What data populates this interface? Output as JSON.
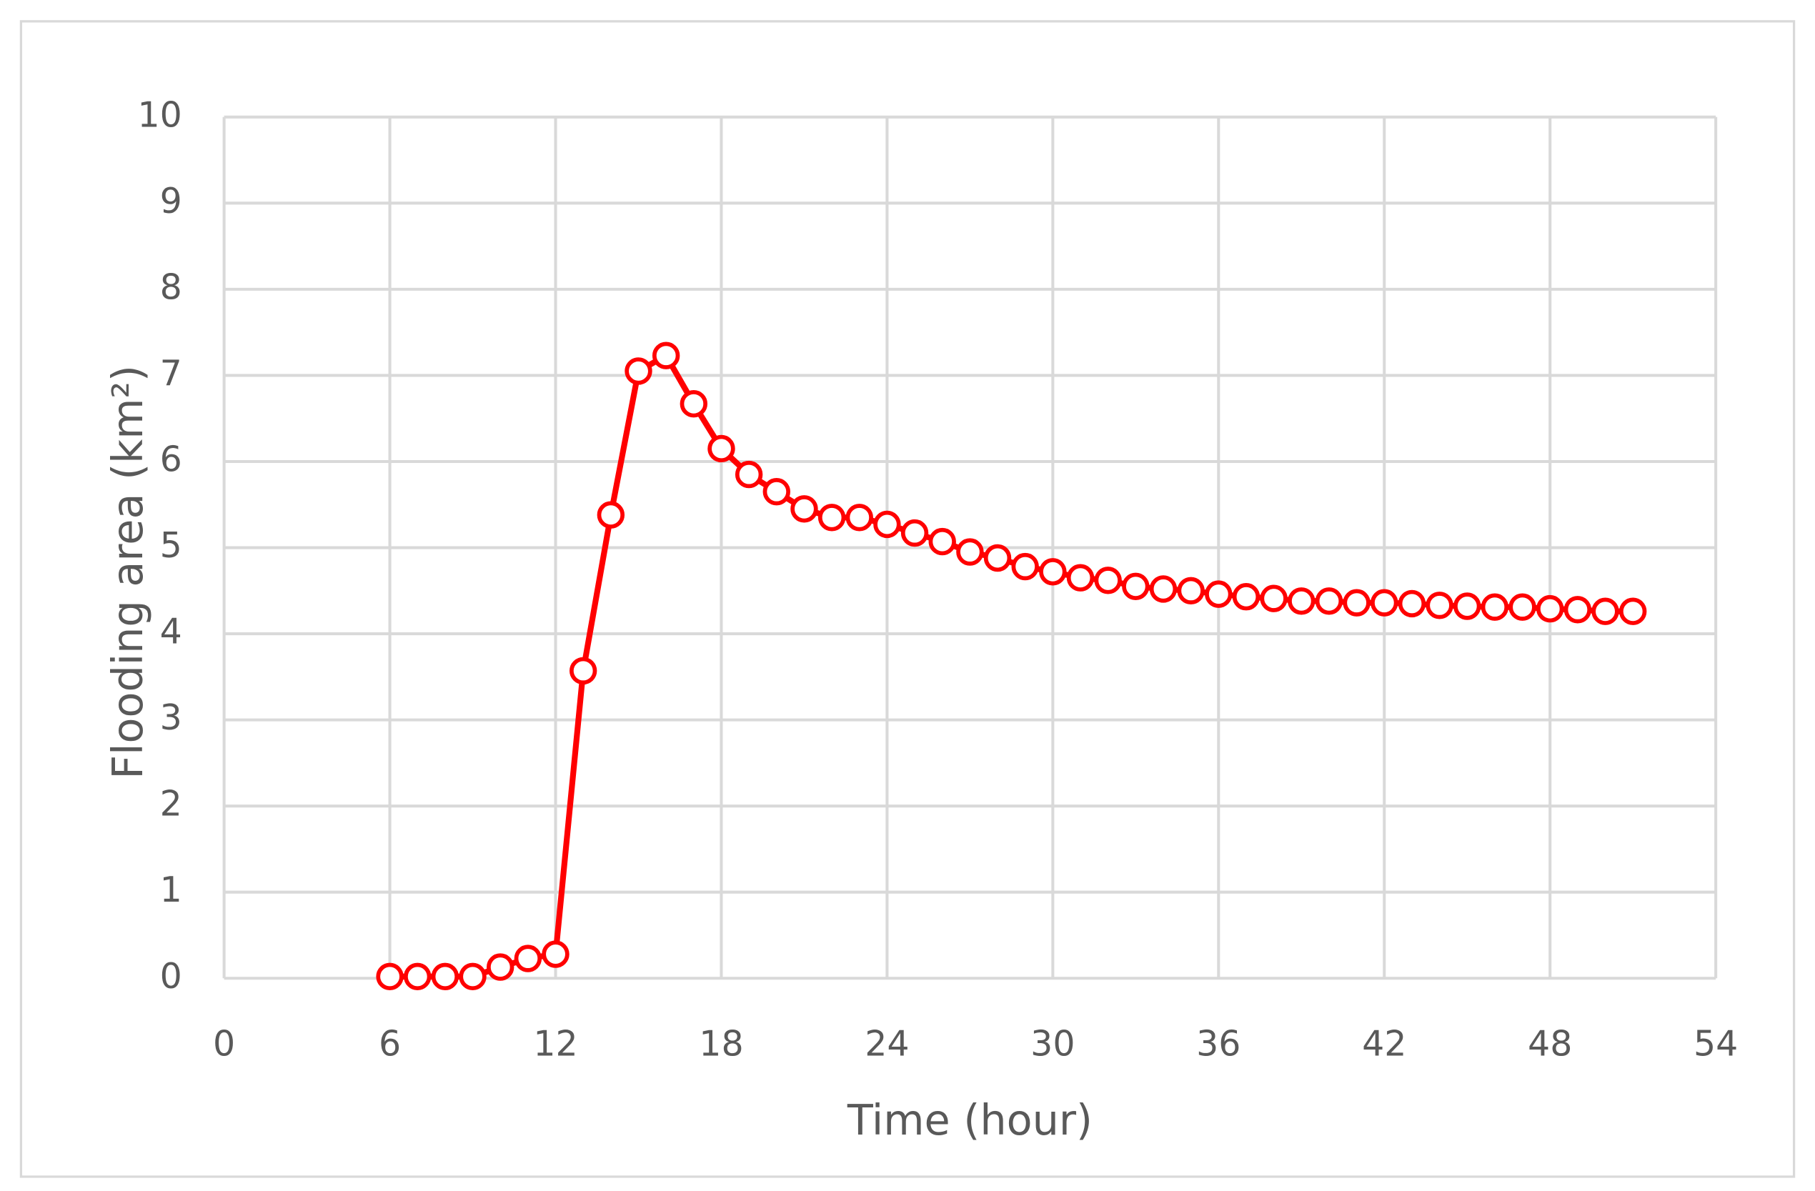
{
  "chart_data": {
    "type": "line",
    "x_label": "Time (hour)",
    "y_label": "Flooding area (km²)",
    "x": [
      6,
      7,
      8,
      9,
      10,
      11,
      12,
      13,
      14,
      15,
      16,
      17,
      18,
      19,
      20,
      21,
      22,
      23,
      24,
      25,
      26,
      27,
      28,
      29,
      30,
      31,
      32,
      33,
      34,
      35,
      36,
      37,
      38,
      39,
      40,
      41,
      42,
      43,
      44,
      45,
      46,
      47,
      48,
      49,
      50,
      51
    ],
    "series": [
      {
        "color": "#ff0000",
        "values": [
          0.02,
          0.02,
          0.02,
          0.02,
          0.13,
          0.23,
          0.28,
          3.57,
          5.38,
          7.05,
          7.23,
          6.67,
          6.15,
          5.85,
          5.65,
          5.45,
          5.35,
          5.35,
          5.27,
          5.17,
          5.07,
          4.95,
          4.88,
          4.78,
          4.72,
          4.65,
          4.62,
          4.55,
          4.52,
          4.5,
          4.46,
          4.43,
          4.41,
          4.38,
          4.38,
          4.36,
          4.36,
          4.35,
          4.33,
          4.32,
          4.31,
          4.31,
          4.29,
          4.28,
          4.26,
          4.26
        ]
      }
    ],
    "xlim": [
      0,
      54
    ],
    "xticks": [
      0,
      6,
      12,
      18,
      24,
      30,
      36,
      42,
      48,
      54
    ],
    "ylim": [
      0,
      10
    ],
    "yticks": [
      0,
      1,
      2,
      3,
      4,
      5,
      6,
      7,
      8,
      9,
      10
    ],
    "grid": true
  }
}
